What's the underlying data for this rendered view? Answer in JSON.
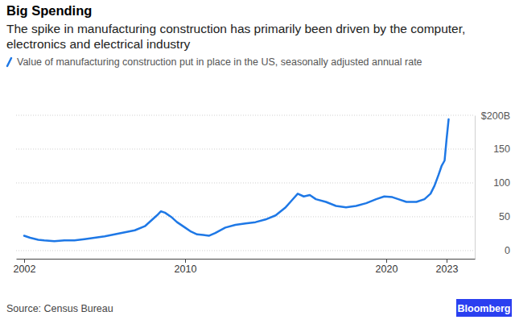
{
  "chart_data": {
    "type": "line",
    "title": "Big Spending",
    "subtitle": "The spike in manufacturing construction has primarily been driven by the computer, electronics and electrical industry",
    "source": "Source: Census Bureau",
    "logo": "Bloomberg",
    "legend": "top",
    "grid": true,
    "x": [
      2002.0,
      2002.3,
      2002.7,
      2003.0,
      2003.5,
      2004.0,
      2004.5,
      2005.0,
      2005.5,
      2006.0,
      2006.5,
      2007.0,
      2007.5,
      2008.0,
      2008.3,
      2008.6,
      2008.8,
      2009.0,
      2009.3,
      2009.6,
      2010.0,
      2010.3,
      2010.6,
      2010.9,
      2011.2,
      2011.5,
      2012.0,
      2012.5,
      2013.0,
      2013.5,
      2014.0,
      2014.5,
      2015.0,
      2015.3,
      2015.6,
      2015.9,
      2016.2,
      2016.5,
      2017.0,
      2017.5,
      2018.0,
      2018.5,
      2019.0,
      2019.5,
      2019.9,
      2020.3,
      2020.6,
      2021.0,
      2021.5,
      2021.9,
      2022.2,
      2022.4,
      2022.6,
      2022.75,
      2022.9,
      2023.0,
      2023.1
    ],
    "series": [
      {
        "name": "Value of manufacturing construction put in place in the US, seasonally adjusted annual rate",
        "color": "#1e78e6",
        "values": [
          22,
          19,
          16,
          15,
          14,
          15,
          15,
          17,
          19,
          21,
          24,
          27,
          30,
          36,
          44,
          52,
          58,
          56,
          50,
          42,
          34,
          28,
          24,
          23,
          22,
          26,
          34,
          38,
          40,
          42,
          46,
          52,
          64,
          74,
          84,
          80,
          82,
          76,
          72,
          66,
          64,
          66,
          70,
          76,
          80,
          79,
          76,
          72,
          72,
          76,
          84,
          96,
          112,
          125,
          133,
          165,
          194
        ]
      }
    ],
    "xlim": [
      2001.6,
      2024.4
    ],
    "xticks": [
      2002,
      2010,
      2020,
      2023
    ],
    "ylim": [
      -12,
      200
    ],
    "yticks": [
      {
        "value": 200,
        "label": "$200B"
      },
      150,
      100,
      50,
      0
    ]
  }
}
